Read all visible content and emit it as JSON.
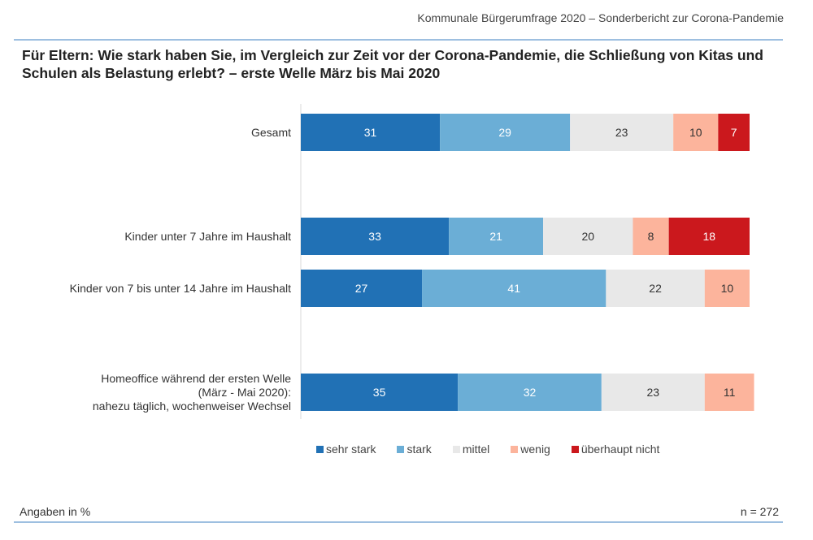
{
  "header": {
    "text": "Kommunale Bürgerumfrage 2020 – Sonderbericht zur Corona-Pandemie"
  },
  "title": "Für Eltern: Wie stark haben Sie, im Vergleich zur Zeit vor der Corona-Pandemie, die Schließung von Kitas und Schulen als Belastung erlebt? – erste Welle März bis Mai 2020",
  "footer": {
    "unit_note": "Angaben in %",
    "sample": "n = 272"
  },
  "chart_data": {
    "type": "bar",
    "orientation": "horizontal",
    "stacked": true,
    "xlim": [
      0,
      100
    ],
    "grid": false,
    "legend_position": "bottom",
    "categories": [
      [
        "Gesamt"
      ],
      [
        "Kinder unter 7 Jahre im Haushalt"
      ],
      [
        "Kinder von 7 bis unter 14 Jahre im Haushalt"
      ],
      [
        "Homeoffice während der ersten Welle",
        "(März - Mai 2020):",
        "nahezu täglich, wochenweiser Wechsel"
      ]
    ],
    "series": [
      {
        "name": "sehr stark",
        "color": "#2171b5",
        "label_color": "#ffffff",
        "values": [
          31,
          33,
          27,
          35
        ]
      },
      {
        "name": "stark",
        "color": "#6baed6",
        "label_color": "#ffffff",
        "values": [
          29,
          21,
          41,
          32
        ]
      },
      {
        "name": "mittel",
        "color": "#e8e8e8",
        "label_color": "#333333",
        "values": [
          23,
          20,
          22,
          23
        ]
      },
      {
        "name": "wenig",
        "color": "#fcb49c",
        "label_color": "#333333",
        "values": [
          10,
          8,
          10,
          11
        ]
      },
      {
        "name": "überhaupt nicht",
        "color": "#cb181d",
        "label_color": "#ffffff",
        "values": [
          7,
          18,
          null,
          null
        ]
      }
    ]
  }
}
